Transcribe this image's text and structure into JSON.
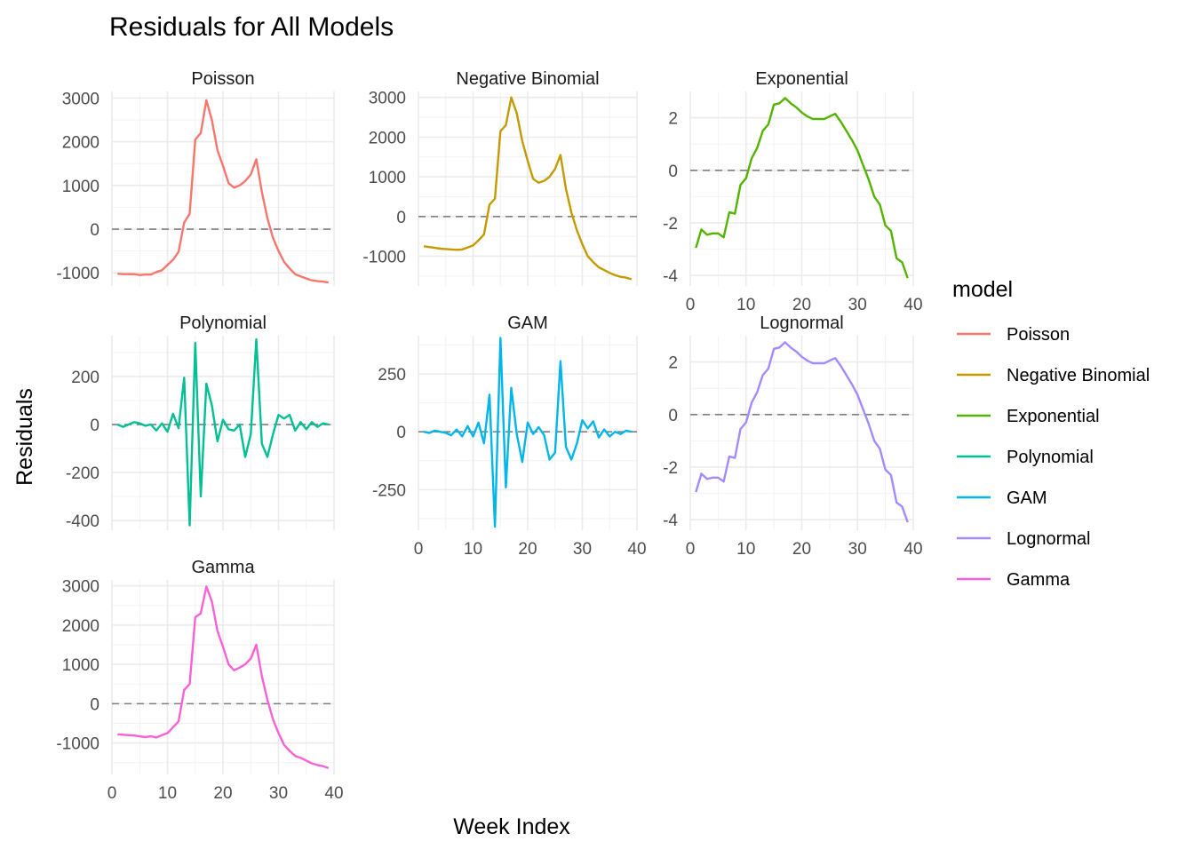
{
  "chart_data": {
    "type": "line",
    "title": "Residuals for All Models",
    "xlabel": "Week Index",
    "ylabel": "Residuals",
    "grid": true,
    "reference_line": {
      "y": 0,
      "style": "dashed"
    },
    "legend": {
      "title": "model",
      "position": "right"
    },
    "x": [
      1,
      2,
      3,
      4,
      5,
      6,
      7,
      8,
      9,
      10,
      11,
      12,
      13,
      14,
      15,
      16,
      17,
      18,
      19,
      20,
      21,
      22,
      23,
      24,
      25,
      26,
      27,
      28,
      29,
      30,
      31,
      32,
      33,
      34,
      35,
      36,
      37,
      38,
      39
    ],
    "xlim": [
      0,
      40
    ],
    "x_ticks": [
      0,
      10,
      20,
      30,
      40
    ],
    "panels": [
      {
        "name": "Poisson",
        "color": "#F8766D",
        "ylim": [
          -1300,
          3150
        ],
        "y_ticks": [
          -1000,
          0,
          1000,
          2000,
          3000
        ],
        "y_tick_labels": [
          "-1000",
          "0",
          "1000",
          "2000",
          "3000"
        ],
        "values": [
          -1020,
          -1030,
          -1030,
          -1030,
          -1050,
          -1040,
          -1040,
          -980,
          -940,
          -820,
          -700,
          -520,
          150,
          350,
          2050,
          2200,
          2950,
          2500,
          1800,
          1450,
          1050,
          950,
          1000,
          1100,
          1250,
          1600,
          850,
          250,
          -200,
          -500,
          -750,
          -900,
          -1030,
          -1080,
          -1130,
          -1170,
          -1190,
          -1200,
          -1220
        ],
        "show_x_ticks": false
      },
      {
        "name": "Negative Binomial",
        "color": "#C49A00",
        "ylim": [
          -1750,
          3150
        ],
        "y_ticks": [
          -1000,
          0,
          1000,
          2000,
          3000
        ],
        "y_tick_labels": [
          "-1000",
          "0",
          "1000",
          "2000",
          "3000"
        ],
        "values": [
          -750,
          -770,
          -790,
          -810,
          -820,
          -830,
          -840,
          -830,
          -780,
          -730,
          -600,
          -450,
          300,
          450,
          2150,
          2300,
          3000,
          2600,
          1900,
          1400,
          950,
          850,
          900,
          1000,
          1200,
          1550,
          700,
          100,
          -350,
          -700,
          -1000,
          -1150,
          -1280,
          -1350,
          -1420,
          -1480,
          -1520,
          -1540,
          -1580
        ],
        "show_x_ticks": false
      },
      {
        "name": "Exponential",
        "color": "#53B400",
        "ylim": [
          -4.4,
          3.0
        ],
        "y_ticks": [
          -4,
          -2,
          0,
          2
        ],
        "y_tick_labels": [
          "-4",
          "-2",
          "0",
          "2"
        ],
        "values": [
          -2.95,
          -2.25,
          -2.45,
          -2.4,
          -2.4,
          -2.55,
          -1.6,
          -1.65,
          -0.55,
          -0.3,
          0.45,
          0.85,
          1.5,
          1.75,
          2.5,
          2.55,
          2.75,
          2.55,
          2.4,
          2.2,
          2.05,
          1.95,
          1.95,
          1.95,
          2.05,
          2.15,
          1.85,
          1.5,
          1.15,
          0.75,
          0.2,
          -0.35,
          -1.0,
          -1.3,
          -2.1,
          -2.3,
          -3.35,
          -3.5,
          -4.1
        ],
        "show_x_ticks": true
      },
      {
        "name": "Polynomial",
        "color": "#00C094",
        "ylim": [
          -440,
          370
        ],
        "y_ticks": [
          -400,
          -200,
          0,
          200
        ],
        "y_tick_labels": [
          "-400",
          "-200",
          "0",
          "200"
        ],
        "values": [
          0,
          -10,
          0,
          10,
          5,
          -5,
          0,
          -25,
          5,
          -30,
          45,
          -15,
          195,
          -420,
          340,
          -300,
          170,
          80,
          -70,
          20,
          -20,
          -25,
          0,
          -135,
          -40,
          355,
          -80,
          -135,
          -40,
          40,
          25,
          40,
          -25,
          10,
          -20,
          10,
          -10,
          5,
          0
        ],
        "show_x_ticks": false
      },
      {
        "name": "GAM",
        "color": "#00B6EB",
        "ylim": [
          -425,
          415
        ],
        "y_ticks": [
          -250,
          0,
          250
        ],
        "y_tick_labels": [
          "-250",
          "0",
          "250"
        ],
        "values": [
          0,
          -5,
          5,
          0,
          -5,
          -15,
          10,
          -20,
          25,
          -20,
          40,
          -50,
          160,
          -410,
          405,
          -240,
          190,
          -10,
          -130,
          40,
          -10,
          20,
          -15,
          -120,
          -90,
          305,
          -65,
          -120,
          -50,
          50,
          15,
          45,
          -25,
          10,
          -20,
          0,
          -10,
          5,
          0
        ],
        "show_x_ticks": true
      },
      {
        "name": "Lognormal",
        "color": "#A58AFF",
        "ylim": [
          -4.4,
          3.0
        ],
        "y_ticks": [
          -4,
          -2,
          0,
          2
        ],
        "y_tick_labels": [
          "-4",
          "-2",
          "0",
          "2"
        ],
        "values": [
          -2.95,
          -2.25,
          -2.45,
          -2.4,
          -2.4,
          -2.55,
          -1.6,
          -1.65,
          -0.55,
          -0.3,
          0.45,
          0.85,
          1.5,
          1.75,
          2.5,
          2.55,
          2.75,
          2.55,
          2.4,
          2.2,
          2.05,
          1.95,
          1.95,
          1.95,
          2.05,
          2.15,
          1.85,
          1.5,
          1.15,
          0.75,
          0.2,
          -0.35,
          -1.0,
          -1.3,
          -2.1,
          -2.3,
          -3.35,
          -3.5,
          -4.1
        ],
        "show_x_ticks": true
      },
      {
        "name": "Gamma",
        "color": "#FB61D7",
        "ylim": [
          -1800,
          3150
        ],
        "y_ticks": [
          -1000,
          0,
          1000,
          2000,
          3000
        ],
        "y_tick_labels": [
          "-1000",
          "0",
          "1000",
          "2000",
          "3000"
        ],
        "values": [
          -780,
          -790,
          -800,
          -810,
          -830,
          -850,
          -830,
          -860,
          -800,
          -750,
          -600,
          -450,
          350,
          500,
          2200,
          2300,
          2980,
          2600,
          1850,
          1450,
          1000,
          850,
          920,
          1000,
          1150,
          1500,
          700,
          100,
          -400,
          -750,
          -1050,
          -1200,
          -1330,
          -1380,
          -1450,
          -1520,
          -1560,
          -1590,
          -1640
        ],
        "show_x_ticks": true
      }
    ]
  }
}
